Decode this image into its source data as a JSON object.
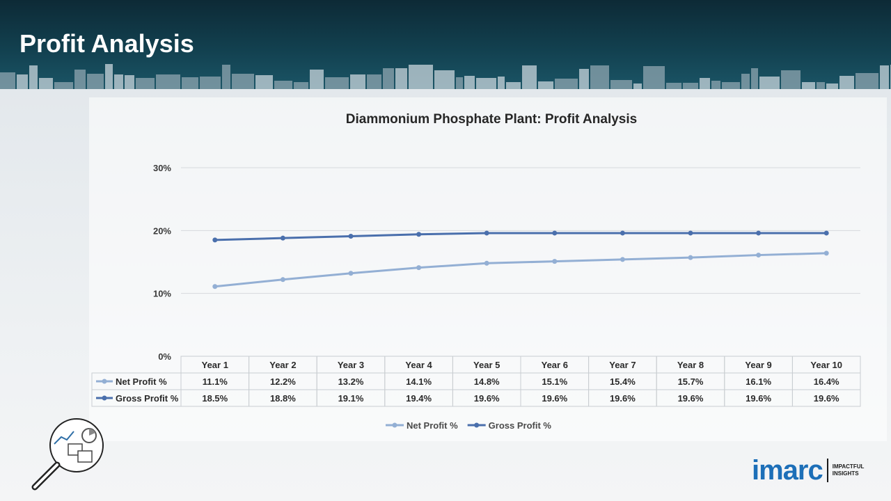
{
  "header": {
    "title": "Profit Analysis"
  },
  "logo": {
    "word": "imarc",
    "tagline": "IMPACTFUL INSIGHTS"
  },
  "colors": {
    "net": "#93afd4",
    "gross": "#4a6fac",
    "header_bg": "#12404f"
  },
  "icons": {
    "badge": "analytics-magnifier-icon",
    "logo": "imarc-logo"
  },
  "chart_data": {
    "type": "line",
    "title": "Diammonium Phosphate Plant: Profit Analysis",
    "categories": [
      "Year 1",
      "Year 2",
      "Year 3",
      "Year 4",
      "Year 5",
      "Year 6",
      "Year 7",
      "Year 8",
      "Year 9",
      "Year 10"
    ],
    "ylim": [
      0,
      30
    ],
    "yticks": [
      "0%",
      "10%",
      "20%",
      "30%"
    ],
    "grid": true,
    "legend_position": "bottom",
    "series": [
      {
        "name": "Net Profit %",
        "values": [
          11.1,
          12.2,
          13.2,
          14.1,
          14.8,
          15.1,
          15.4,
          15.7,
          16.1,
          16.4
        ],
        "labels": [
          "11.1%",
          "12.2%",
          "13.2%",
          "14.1%",
          "14.8%",
          "15.1%",
          "15.4%",
          "15.7%",
          "16.1%",
          "16.4%"
        ]
      },
      {
        "name": "Gross Profit %",
        "values": [
          18.5,
          18.8,
          19.1,
          19.4,
          19.6,
          19.6,
          19.6,
          19.6,
          19.6,
          19.6
        ],
        "labels": [
          "18.5%",
          "18.8%",
          "19.1%",
          "19.4%",
          "19.6%",
          "19.6%",
          "19.6%",
          "19.6%",
          "19.6%",
          "19.6%"
        ]
      }
    ]
  }
}
